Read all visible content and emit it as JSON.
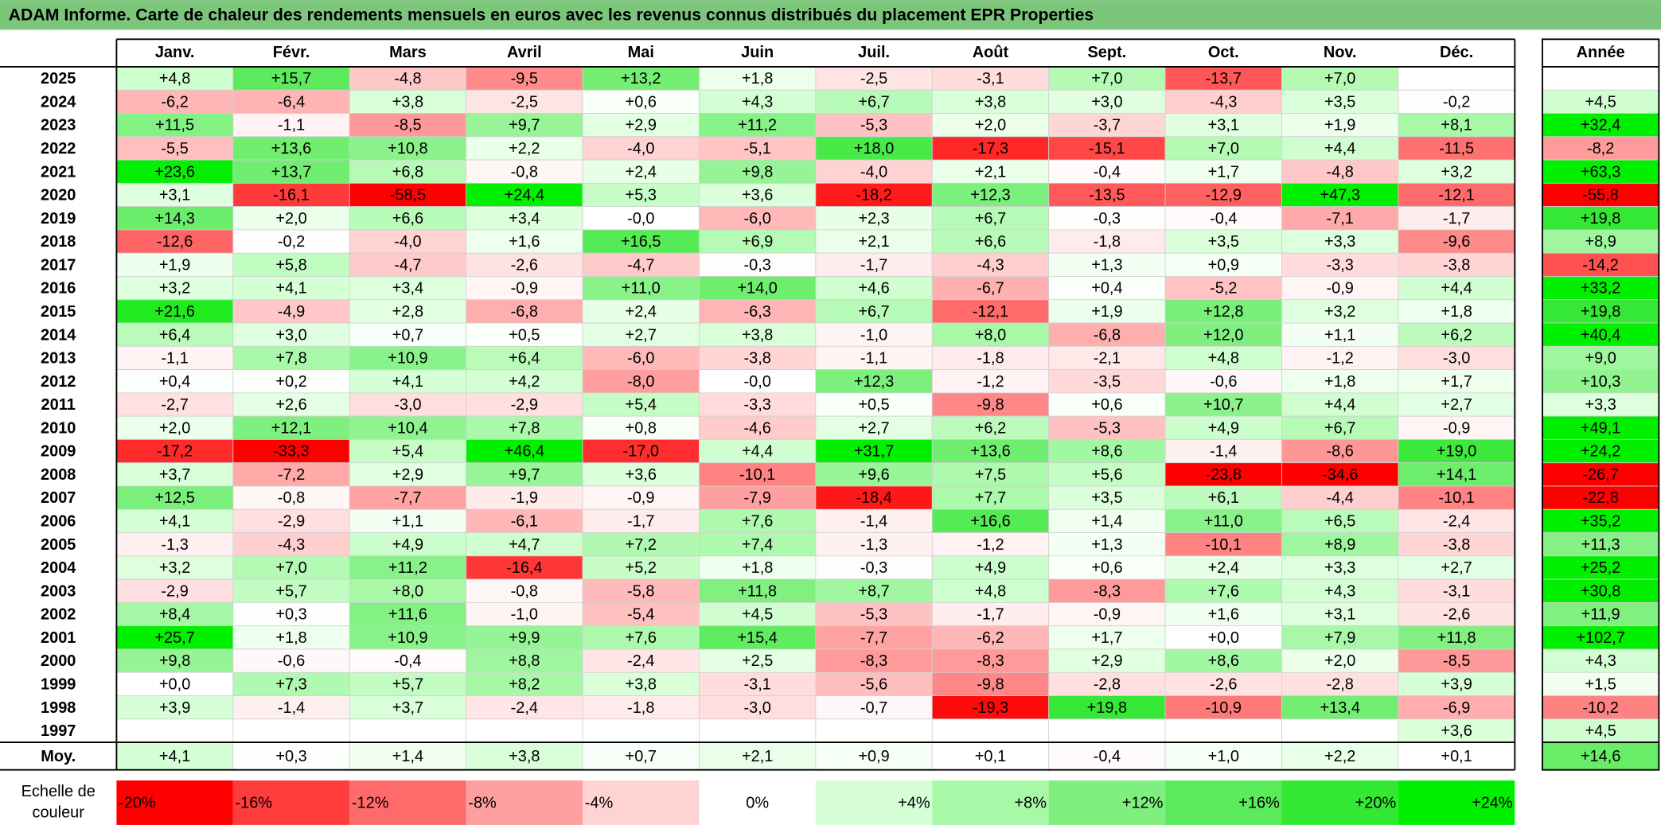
{
  "title": "ADAM Informe. Carte de chaleur des rendements mensuels en euros avec les revenus connus distribués du placement EPR Properties",
  "table": {
    "columns": [
      "Janv.",
      "Févr.",
      "Mars",
      "Avril",
      "Mai",
      "Juin",
      "Juil.",
      "Août",
      "Sept.",
      "Oct.",
      "Nov.",
      "Déc."
    ],
    "annual_header": "Année",
    "rows": [
      {
        "label": "2025",
        "cells": [
          "+4,8",
          "+15,7",
          "-4,8",
          "-9,5",
          "+13,2",
          "+1,8",
          "-2,5",
          "-3,1",
          "+7,0",
          "-13,7",
          "+7,0",
          null
        ],
        "annual": null
      },
      {
        "label": "2024",
        "cells": [
          "-6,2",
          "-6,4",
          "+3,8",
          "-2,5",
          "+0,6",
          "+4,3",
          "+6,7",
          "+3,8",
          "+3,0",
          "-4,3",
          "+3,5",
          "-0,2"
        ],
        "annual": "+4,5"
      },
      {
        "label": "2023",
        "cells": [
          "+11,5",
          "-1,1",
          "-8,5",
          "+9,7",
          "+2,9",
          "+11,2",
          "-5,3",
          "+2,0",
          "-3,7",
          "+3,1",
          "+1,9",
          "+8,1"
        ],
        "annual": "+32,4"
      },
      {
        "label": "2022",
        "cells": [
          "-5,5",
          "+13,6",
          "+10,8",
          "+2,2",
          "-4,0",
          "-5,1",
          "+18,0",
          "-17,3",
          "-15,1",
          "+7,0",
          "+4,4",
          "-11,5"
        ],
        "annual": "-8,2"
      },
      {
        "label": "2021",
        "cells": [
          "+23,6",
          "+13,7",
          "+6,8",
          "-0,8",
          "+2,4",
          "+9,8",
          "-4,0",
          "+2,1",
          "-0,4",
          "+1,7",
          "-4,8",
          "+3,2"
        ],
        "annual": "+63,3"
      },
      {
        "label": "2020",
        "cells": [
          "+3,1",
          "-16,1",
          "-58,5",
          "+24,4",
          "+5,3",
          "+3,6",
          "-18,2",
          "+12,3",
          "-13,5",
          "-12,9",
          "+47,3",
          "-12,1"
        ],
        "annual": "-55,8"
      },
      {
        "label": "2019",
        "cells": [
          "+14,3",
          "+2,0",
          "+6,6",
          "+3,4",
          "-0,0",
          "-6,0",
          "+2,3",
          "+6,7",
          "-0,3",
          "-0,4",
          "-7,1",
          "-1,7"
        ],
        "annual": "+19,8"
      },
      {
        "label": "2018",
        "cells": [
          "-12,6",
          "-0,2",
          "-4,0",
          "+1,6",
          "+16,5",
          "+6,9",
          "+2,1",
          "+6,6",
          "-1,8",
          "+3,5",
          "+3,3",
          "-9,6"
        ],
        "annual": "+8,9"
      },
      {
        "label": "2017",
        "cells": [
          "+1,9",
          "+5,8",
          "-4,7",
          "-2,6",
          "-4,7",
          "-0,3",
          "-1,7",
          "-4,3",
          "+1,3",
          "+0,9",
          "-3,3",
          "-3,8"
        ],
        "annual": "-14,2"
      },
      {
        "label": "2016",
        "cells": [
          "+3,2",
          "+4,1",
          "+3,4",
          "-0,9",
          "+11,0",
          "+14,0",
          "+4,6",
          "-6,7",
          "+0,4",
          "-5,2",
          "-0,9",
          "+4,4"
        ],
        "annual": "+33,2"
      },
      {
        "label": "2015",
        "cells": [
          "+21,6",
          "-4,9",
          "+2,8",
          "-6,8",
          "+2,4",
          "-6,3",
          "+6,7",
          "-12,1",
          "+1,9",
          "+12,8",
          "+3,2",
          "+1,8"
        ],
        "annual": "+19,8"
      },
      {
        "label": "2014",
        "cells": [
          "+6,4",
          "+3,0",
          "+0,7",
          "+0,5",
          "+2,7",
          "+3,8",
          "-1,0",
          "+8,0",
          "-6,8",
          "+12,0",
          "+1,1",
          "+6,2"
        ],
        "annual": "+40,4"
      },
      {
        "label": "2013",
        "cells": [
          "-1,1",
          "+7,8",
          "+10,9",
          "+6,4",
          "-6,0",
          "-3,8",
          "-1,1",
          "-1,8",
          "-2,1",
          "+4,8",
          "-1,2",
          "-3,0"
        ],
        "annual": "+9,0"
      },
      {
        "label": "2012",
        "cells": [
          "+0,4",
          "+0,2",
          "+4,1",
          "+4,2",
          "-8,0",
          "-0,0",
          "+12,3",
          "-1,2",
          "-3,5",
          "-0,6",
          "+1,8",
          "+1,7"
        ],
        "annual": "+10,3"
      },
      {
        "label": "2011",
        "cells": [
          "-2,7",
          "+2,6",
          "-3,0",
          "-2,9",
          "+5,4",
          "-3,3",
          "+0,5",
          "-9,8",
          "+0,6",
          "+10,7",
          "+4,4",
          "+2,7"
        ],
        "annual": "+3,3"
      },
      {
        "label": "2010",
        "cells": [
          "+2,0",
          "+12,1",
          "+10,4",
          "+7,8",
          "+0,8",
          "-4,6",
          "+2,7",
          "+6,2",
          "-5,3",
          "+4,9",
          "+6,7",
          "-0,9"
        ],
        "annual": "+49,1"
      },
      {
        "label": "2009",
        "cells": [
          "-17,2",
          "-33,3",
          "+5,4",
          "+46,4",
          "-17,0",
          "+4,4",
          "+31,7",
          "+13,6",
          "+8,6",
          "-1,4",
          "-8,6",
          "+19,0"
        ],
        "annual": "+24,2"
      },
      {
        "label": "2008",
        "cells": [
          "+3,7",
          "-7,2",
          "+2,9",
          "+9,7",
          "+3,6",
          "-10,1",
          "+9,6",
          "+7,5",
          "+5,6",
          "-23,8",
          "-34,6",
          "+14,1"
        ],
        "annual": "-26,7"
      },
      {
        "label": "2007",
        "cells": [
          "+12,5",
          "-0,8",
          "-7,7",
          "-1,9",
          "-0,9",
          "-7,9",
          "-18,4",
          "+7,7",
          "+3,5",
          "+6,1",
          "-4,4",
          "-10,1"
        ],
        "annual": "-22,8"
      },
      {
        "label": "2006",
        "cells": [
          "+4,1",
          "-2,9",
          "+1,1",
          "-6,1",
          "-1,7",
          "+7,6",
          "-1,4",
          "+16,6",
          "+1,4",
          "+11,0",
          "+6,5",
          "-2,4"
        ],
        "annual": "+35,2"
      },
      {
        "label": "2005",
        "cells": [
          "-1,3",
          "-4,3",
          "+4,9",
          "+4,7",
          "+7,2",
          "+7,4",
          "-1,3",
          "-1,2",
          "+1,3",
          "-10,1",
          "+8,9",
          "-3,8"
        ],
        "annual": "+11,3"
      },
      {
        "label": "2004",
        "cells": [
          "+3,2",
          "+7,0",
          "+11,2",
          "-16,4",
          "+5,2",
          "+1,8",
          "-0,3",
          "+4,9",
          "+0,6",
          "+2,4",
          "+3,3",
          "+2,7"
        ],
        "annual": "+25,2"
      },
      {
        "label": "2003",
        "cells": [
          "-2,9",
          "+5,7",
          "+8,0",
          "-0,8",
          "-5,8",
          "+11,8",
          "+8,7",
          "+4,8",
          "-8,3",
          "+7,6",
          "+4,3",
          "-3,1"
        ],
        "annual": "+30,8"
      },
      {
        "label": "2002",
        "cells": [
          "+8,4",
          "+0,3",
          "+11,6",
          "-1,0",
          "-5,4",
          "+4,5",
          "-5,3",
          "-1,7",
          "-0,9",
          "+1,6",
          "+3,1",
          "-2,6"
        ],
        "annual": "+11,9"
      },
      {
        "label": "2001",
        "cells": [
          "+25,7",
          "+1,8",
          "+10,9",
          "+9,9",
          "+7,6",
          "+15,4",
          "-7,7",
          "-6,2",
          "+1,7",
          "+0,0",
          "+7,9",
          "+11,8"
        ],
        "annual": "+102,7"
      },
      {
        "label": "2000",
        "cells": [
          "+9,8",
          "-0,6",
          "-0,4",
          "+8,8",
          "-2,4",
          "+2,5",
          "-8,3",
          "-8,3",
          "+2,9",
          "+8,6",
          "+2,0",
          "-8,5"
        ],
        "annual": "+4,3"
      },
      {
        "label": "1999",
        "cells": [
          "+0,0",
          "+7,3",
          "+5,7",
          "+8,2",
          "+3,8",
          "-3,1",
          "-5,6",
          "-9,8",
          "-2,8",
          "-2,6",
          "-2,8",
          "+3,9"
        ],
        "annual": "+1,5"
      },
      {
        "label": "1998",
        "cells": [
          "+3,9",
          "-1,4",
          "+3,7",
          "-2,4",
          "-1,8",
          "-3,0",
          "-0,7",
          "-19,3",
          "+19,8",
          "-10,9",
          "+13,4",
          "-6,9"
        ],
        "annual": "-10,2"
      },
      {
        "label": "1997",
        "cells": [
          null,
          null,
          null,
          null,
          null,
          null,
          null,
          null,
          null,
          null,
          null,
          "+3,6"
        ],
        "annual": "+4,5"
      }
    ],
    "average": {
      "label": "Moy.",
      "cells": [
        "+4,1",
        "+0,3",
        "+1,4",
        "+3,8",
        "+0,7",
        "+2,1",
        "+0,9",
        "+0,1",
        "-0,4",
        "+1,0",
        "+2,2",
        "+0,1"
      ],
      "annual": "+14,6"
    }
  },
  "legend": {
    "label_lines": [
      "Echelle de",
      "couleur"
    ],
    "items": [
      {
        "value": -20,
        "label": "-20%",
        "color": "#ff0000"
      },
      {
        "value": -16,
        "label": "-16%",
        "color": "#ff3c3c"
      },
      {
        "value": -12,
        "label": "-12%",
        "color": "#ff6b6b"
      },
      {
        "value": -8,
        "label": "-8%",
        "color": "#ff9e9e"
      },
      {
        "value": -4,
        "label": "-4%",
        "color": "#ffd3d3"
      },
      {
        "value": 0,
        "label": "0%",
        "color": "#ffffff"
      },
      {
        "value": 4,
        "label": "+4%",
        "color": "#d6ffd6"
      },
      {
        "value": 8,
        "label": "+8%",
        "color": "#a8f8a8"
      },
      {
        "value": 12,
        "label": "+12%",
        "color": "#7ff07f"
      },
      {
        "value": 16,
        "label": "+16%",
        "color": "#5aeb5a"
      },
      {
        "value": 20,
        "label": "+20%",
        "color": "#33e833"
      },
      {
        "value": 24,
        "label": "+24%",
        "color": "#00f000"
      }
    ]
  }
}
